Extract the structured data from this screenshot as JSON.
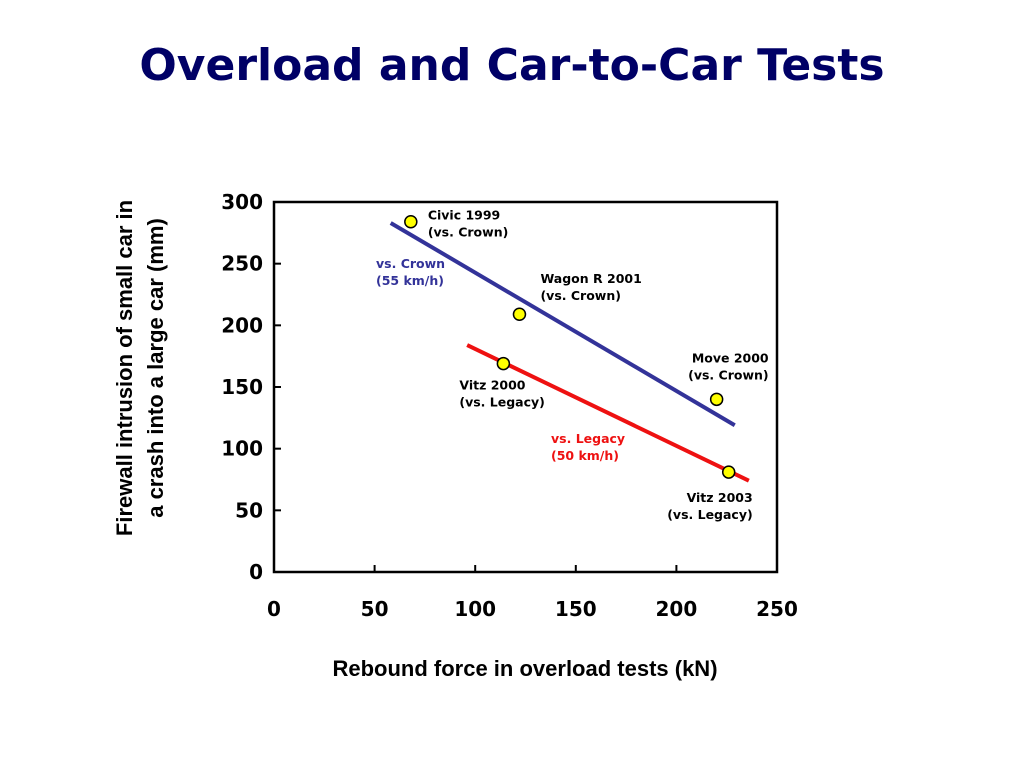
{
  "title": "Overload and Car-to-Car Tests",
  "chart_data": {
    "type": "scatter",
    "xlabel": "Rebound force in overload tests (kN)",
    "ylabel_line1": "Firewall intrusion of small car in",
    "ylabel_line2": "a crash into a large car (mm)",
    "xlim": [
      0,
      250
    ],
    "ylim": [
      0,
      300
    ],
    "xticks": [
      "0",
      "50",
      "100",
      "150",
      "200",
      "250"
    ],
    "yticks": [
      "0",
      "50",
      "100",
      "150",
      "200",
      "250",
      "300"
    ],
    "grid": false,
    "points": [
      {
        "x": 68,
        "y": 284,
        "label_line1": "Civic 1999",
        "label_line2": "(vs. Crown)"
      },
      {
        "x": 122,
        "y": 209,
        "label_line1": "Wagon R 2001",
        "label_line2": "(vs. Crown)"
      },
      {
        "x": 220,
        "y": 140,
        "label_line1": "Move 2000",
        "label_line2": "(vs. Crown)"
      },
      {
        "x": 114,
        "y": 169,
        "label_line1": "Vitz 2000",
        "label_line2": "(vs. Legacy)"
      },
      {
        "x": 226,
        "y": 81,
        "label_line1": "Vitz 2003",
        "label_line2": "(vs. Legacy)"
      }
    ],
    "series": [
      {
        "name_line1": "vs. Crown",
        "name_line2": "(55 km/h)",
        "color": "#333399",
        "fit_x": [
          58,
          229
        ],
        "fit_y": [
          283,
          119
        ]
      },
      {
        "name_line1": "vs. Legacy",
        "name_line2": "(50 km/h)",
        "color": "#ee1111",
        "fit_x": [
          96,
          236
        ],
        "fit_y": [
          184,
          74
        ]
      }
    ],
    "marker_color": "#ffff00"
  }
}
